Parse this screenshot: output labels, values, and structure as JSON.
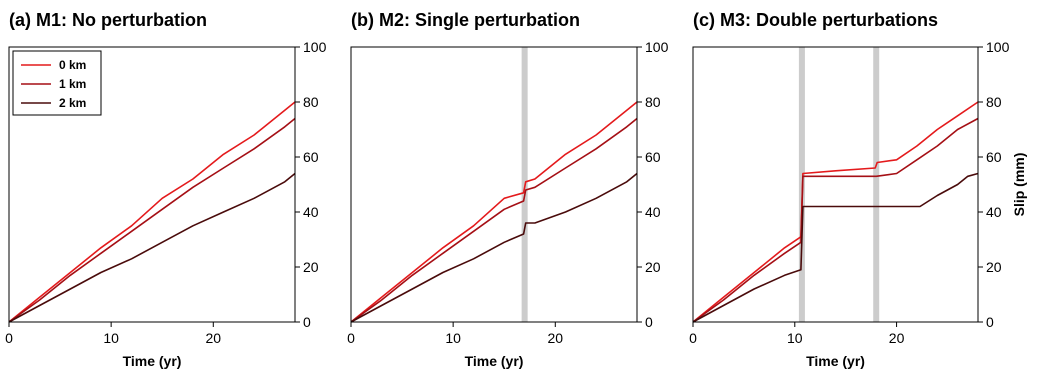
{
  "chart_data": [
    {
      "type": "line",
      "title": "(a) M1: No perturbation",
      "xlabel": "Time (yr)",
      "ylabel": "",
      "xlim": [
        0,
        28
      ],
      "ylim": [
        0,
        100
      ],
      "xticks": [
        0,
        10,
        20
      ],
      "yticks": [
        0,
        20,
        40,
        60,
        80,
        100
      ],
      "yaxis_side": "right",
      "grid": false,
      "legend": {
        "position": "top-left"
      },
      "perturbations": [],
      "series": [
        {
          "name": "0 km",
          "color": "#e41a1c",
          "x": [
            0,
            3,
            6,
            9,
            12,
            15,
            18,
            21,
            24,
            27,
            28
          ],
          "y": [
            0,
            9,
            18,
            27,
            35,
            45,
            52,
            61,
            68,
            77,
            80
          ]
        },
        {
          "name": "1 km",
          "color": "#a50f15",
          "x": [
            0,
            3,
            6,
            9,
            12,
            15,
            18,
            21,
            24,
            27,
            28
          ],
          "y": [
            0,
            8,
            17,
            25,
            33,
            41,
            49,
            56,
            63,
            71,
            74
          ]
        },
        {
          "name": "2 km",
          "color": "#4a0b0b",
          "x": [
            0,
            3,
            6,
            9,
            12,
            15,
            18,
            21,
            24,
            27,
            28
          ],
          "y": [
            0,
            6,
            12,
            18,
            23,
            29,
            35,
            40,
            45,
            51,
            54
          ]
        }
      ]
    },
    {
      "type": "line",
      "title": "(b) M2: Single perturbation",
      "xlabel": "Time (yr)",
      "ylabel": "",
      "xlim": [
        0,
        28
      ],
      "ylim": [
        0,
        100
      ],
      "xticks": [
        0,
        10,
        20
      ],
      "yticks": [
        0,
        20,
        40,
        60,
        80,
        100
      ],
      "yaxis_side": "right",
      "grid": false,
      "legend": null,
      "perturbations": [
        17
      ],
      "series": [
        {
          "name": "0 km",
          "color": "#e41a1c",
          "x": [
            0,
            3,
            6,
            9,
            12,
            15,
            16.9,
            17.1,
            18,
            21,
            24,
            27,
            28
          ],
          "y": [
            0,
            9,
            18,
            27,
            35,
            45,
            47,
            51,
            52,
            61,
            68,
            77,
            80
          ]
        },
        {
          "name": "1 km",
          "color": "#a50f15",
          "x": [
            0,
            3,
            6,
            9,
            12,
            15,
            16.9,
            17.1,
            18,
            21,
            24,
            27,
            28
          ],
          "y": [
            0,
            8,
            17,
            25,
            33,
            41,
            44,
            48,
            49,
            56,
            63,
            71,
            74
          ]
        },
        {
          "name": "2 km",
          "color": "#4a0b0b",
          "x": [
            0,
            3,
            6,
            9,
            12,
            15,
            16.9,
            17.1,
            18,
            21,
            24,
            27,
            28
          ],
          "y": [
            0,
            6,
            12,
            18,
            23,
            29,
            32,
            36,
            36,
            40,
            45,
            51,
            54
          ]
        }
      ]
    },
    {
      "type": "line",
      "title": "(c) M3: Double perturbations",
      "xlabel": "Time (yr)",
      "ylabel": "Slip (mm)",
      "xlim": [
        0,
        28
      ],
      "ylim": [
        0,
        100
      ],
      "xticks": [
        0,
        10,
        20
      ],
      "yticks": [
        0,
        20,
        40,
        60,
        80,
        100
      ],
      "yaxis_side": "right",
      "grid": false,
      "legend": null,
      "perturbations": [
        10.7,
        18
      ],
      "series": [
        {
          "name": "0 km",
          "color": "#e41a1c",
          "x": [
            0,
            3,
            6,
            9,
            10.6,
            10.8,
            14,
            17.9,
            18.1,
            20,
            22,
            24,
            26,
            28
          ],
          "y": [
            0,
            9,
            18,
            27,
            31,
            54,
            55,
            56,
            58,
            59,
            64,
            70,
            75,
            80
          ]
        },
        {
          "name": "1 km",
          "color": "#a50f15",
          "x": [
            0,
            3,
            6,
            9,
            10.6,
            10.8,
            14,
            18,
            20,
            22,
            24,
            26,
            28
          ],
          "y": [
            0,
            8,
            17,
            25,
            29,
            53,
            53,
            53,
            54,
            59,
            64,
            70,
            74
          ]
        },
        {
          "name": "2 km",
          "color": "#4a0b0b",
          "x": [
            0,
            3,
            6,
            9,
            10.6,
            10.8,
            14,
            18,
            22.3,
            24,
            26,
            27,
            28
          ],
          "y": [
            0,
            6,
            12,
            17,
            19,
            42,
            42,
            42,
            42,
            46,
            50,
            53,
            54
          ]
        }
      ]
    }
  ]
}
